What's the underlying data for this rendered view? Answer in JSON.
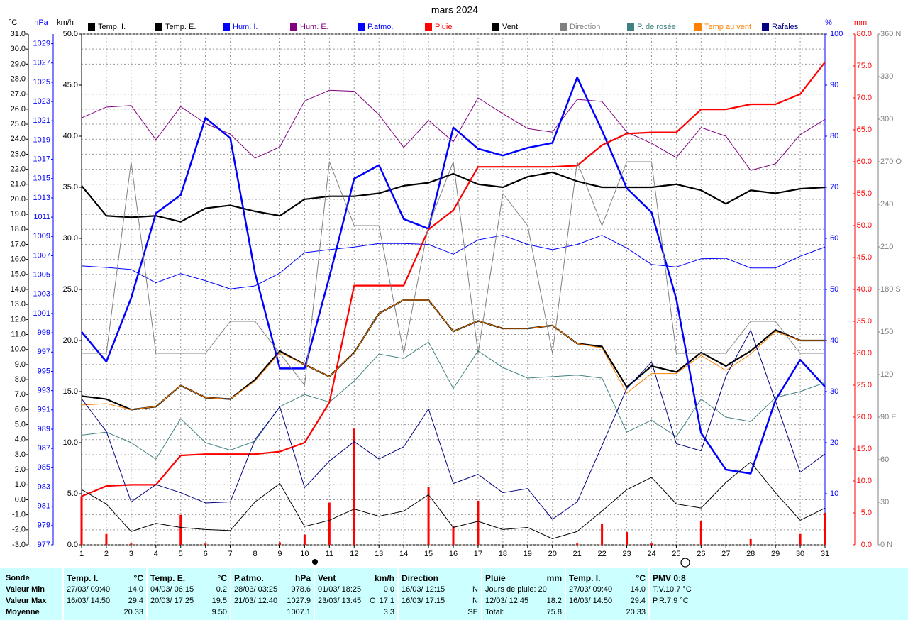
{
  "chart_data": {
    "type": "line",
    "title": "mars 2024",
    "x": [
      1,
      2,
      3,
      4,
      5,
      6,
      7,
      8,
      9,
      10,
      11,
      12,
      13,
      14,
      15,
      16,
      17,
      18,
      19,
      20,
      21,
      22,
      23,
      24,
      25,
      26,
      27,
      28,
      29,
      30,
      31
    ],
    "xlim": [
      1,
      31
    ],
    "xticks": [
      1,
      2,
      3,
      4,
      5,
      6,
      7,
      8,
      9,
      10,
      11,
      12,
      13,
      14,
      15,
      16,
      17,
      18,
      19,
      20,
      21,
      22,
      23,
      24,
      25,
      26,
      27,
      28,
      29,
      30,
      31
    ],
    "ylabel": "°C",
    "ycolor": "#000000",
    "ylim": [
      -3,
      31
    ],
    "yticks": [
      {
        "value": -3,
        "label": "-3.0"
      },
      {
        "value": -2,
        "label": "-2.0"
      },
      {
        "value": -1,
        "label": "-1.0"
      },
      {
        "value": 0,
        "label": "0.0"
      },
      {
        "value": 1,
        "label": "1.0"
      },
      {
        "value": 2,
        "label": "2.0"
      },
      {
        "value": 3,
        "label": "3.0"
      },
      {
        "value": 4,
        "label": "4.0"
      },
      {
        "value": 5,
        "label": "5.0"
      },
      {
        "value": 6,
        "label": "6.0"
      },
      {
        "value": 7,
        "label": "7.0"
      },
      {
        "value": 8,
        "label": "8.0"
      },
      {
        "value": 9,
        "label": "9.0"
      },
      {
        "value": 10,
        "label": "10.0"
      },
      {
        "value": 11,
        "label": "11.0"
      },
      {
        "value": 12,
        "label": "12.0"
      },
      {
        "value": 13,
        "label": "13.0"
      },
      {
        "value": 14,
        "label": "14.0"
      },
      {
        "value": 15,
        "label": "15.0"
      },
      {
        "value": 16,
        "label": "16.0"
      },
      {
        "value": 17,
        "label": "17.0"
      },
      {
        "value": 18,
        "label": "18.0"
      },
      {
        "value": 19,
        "label": "19.0"
      },
      {
        "value": 20,
        "label": "20.0"
      },
      {
        "value": 21,
        "label": "21.0"
      },
      {
        "value": 22,
        "label": "22.0"
      },
      {
        "value": 23,
        "label": "23.0"
      },
      {
        "value": 24,
        "label": "24.0"
      },
      {
        "value": 25,
        "label": "25.0"
      },
      {
        "value": 26,
        "label": "26.0"
      },
      {
        "value": 27,
        "label": "27.0"
      },
      {
        "value": 28,
        "label": "28.0"
      },
      {
        "value": 29,
        "label": "29.0"
      },
      {
        "value": 30,
        "label": "30.0"
      },
      {
        "value": 31,
        "label": "31.0"
      }
    ],
    "y2label": "hPa",
    "y2color": "#0000ff",
    "y2lim": [
      977,
      1030
    ],
    "y2ticks": [
      977,
      979,
      981,
      983,
      985,
      987,
      989,
      991,
      993,
      995,
      997,
      999,
      1001,
      1003,
      1005,
      1007,
      1009,
      1011,
      1013,
      1015,
      1017,
      1019,
      1021,
      1023,
      1025,
      1027,
      1029
    ],
    "y3label": "km/h",
    "y3color": "#000000",
    "y3lim": [
      0,
      50
    ],
    "y3ticks": [
      {
        "value": 0,
        "label": "0.0"
      },
      {
        "value": 5,
        "label": "5.0"
      },
      {
        "value": 10,
        "label": "10.0"
      },
      {
        "value": 15,
        "label": "15.0"
      },
      {
        "value": 20,
        "label": "20.0"
      },
      {
        "value": 25,
        "label": "25.0"
      },
      {
        "value": 30,
        "label": "30.0"
      },
      {
        "value": 35,
        "label": "35.0"
      },
      {
        "value": 40,
        "label": "40.0"
      },
      {
        "value": 45,
        "label": "45.0"
      },
      {
        "value": 50,
        "label": "50.0"
      }
    ],
    "y4label": "%",
    "y4color": "#0000ff",
    "y4lim": [
      0,
      100
    ],
    "y4ticks": [
      10,
      20,
      30,
      40,
      50,
      60,
      70,
      80,
      90,
      100
    ],
    "y5label": "mm",
    "y5color": "#ff0000",
    "y5lim": [
      0,
      80
    ],
    "y5ticks": [
      {
        "value": 0,
        "label": "0.0"
      },
      {
        "value": 5,
        "label": "5.0"
      },
      {
        "value": 10,
        "label": "10.0"
      },
      {
        "value": 15,
        "label": "15.0"
      },
      {
        "value": 20,
        "label": "20.0"
      },
      {
        "value": 25,
        "label": "25.0"
      },
      {
        "value": 30,
        "label": "30.0"
      },
      {
        "value": 35,
        "label": "35.0"
      },
      {
        "value": 40,
        "label": "40.0"
      },
      {
        "value": 45,
        "label": "45.0"
      },
      {
        "value": 50,
        "label": "50.0"
      },
      {
        "value": 55,
        "label": "55.0"
      },
      {
        "value": 60,
        "label": "60.0"
      },
      {
        "value": 65,
        "label": "65.0"
      },
      {
        "value": 70,
        "label": "70.0"
      },
      {
        "value": 75,
        "label": "75.0"
      },
      {
        "value": 80,
        "label": "80.0"
      }
    ],
    "y6color": "#808080",
    "y6lim": [
      0,
      360
    ],
    "y6ticks": [
      {
        "value": 0,
        "label": "0 N"
      },
      30,
      60,
      {
        "value": 90,
        "label": "90 E"
      },
      120,
      150,
      {
        "value": 180,
        "label": "180 S"
      },
      210,
      240,
      {
        "value": 270,
        "label": "270 O"
      },
      300,
      330,
      {
        "value": 360,
        "label": "360 N"
      }
    ],
    "grid": true,
    "series": [
      {
        "name": "Temp. I.",
        "color": "#000000",
        "axis": "y",
        "values": [
          20.9,
          18.9,
          18.8,
          18.9,
          18.5,
          19.4,
          19.6,
          19.2,
          18.9,
          20.0,
          20.2,
          20.2,
          20.4,
          20.9,
          21.1,
          21.7,
          21.0,
          20.8,
          21.5,
          21.8,
          21.2,
          20.8,
          20.8,
          20.8,
          21.0,
          20.6,
          19.7,
          20.6,
          20.4,
          20.7,
          20.8
        ]
      },
      {
        "name": "Temp. E.",
        "color": "#000000",
        "axis": "y",
        "values": [
          6.9,
          6.7,
          6.0,
          6.2,
          7.6,
          6.8,
          6.7,
          8.0,
          9.9,
          9.0,
          8.2,
          9.8,
          12.4,
          13.3,
          13.3,
          11.2,
          11.9,
          11.4,
          11.4,
          11.6,
          10.4,
          10.2,
          7.5,
          8.9,
          8.5,
          9.8,
          8.9,
          9.9,
          11.3,
          10.6,
          10.6
        ]
      },
      {
        "name": "Hum. I.",
        "color": "#0000ff",
        "axis": "y4",
        "values": [
          54.6,
          54.3,
          53.9,
          51.3,
          53.1,
          51.7,
          50.1,
          50.7,
          53.2,
          57.2,
          57.8,
          58.3,
          59.0,
          59.0,
          58.8,
          56.9,
          59.7,
          60.6,
          58.8,
          57.8,
          58.8,
          60.6,
          58.1,
          54.9,
          54.4,
          56.0,
          56.1,
          54.2,
          54.2,
          56.5,
          58.3
        ]
      },
      {
        "name": "Hum. E.",
        "color": "#800080",
        "axis": "y4",
        "values": [
          83.6,
          85.7,
          86.0,
          79.3,
          85.8,
          82.5,
          80.4,
          75.7,
          77.9,
          86.9,
          89.0,
          88.8,
          84.2,
          77.8,
          83.1,
          78.9,
          87.5,
          84.4,
          81.5,
          80.8,
          87.2,
          86.8,
          80.8,
          78.6,
          75.8,
          81.7,
          80.0,
          73.3,
          74.6,
          80.3,
          83.3
        ]
      },
      {
        "name": "P.atmo.",
        "color": "#0000ff",
        "axis": "y2",
        "values": [
          999.1,
          996.0,
          1002.6,
          1011.4,
          1013.3,
          1021.3,
          1019.2,
          1005.2,
          995.3,
          995.3,
          1004.8,
          1015.0,
          1016.4,
          1010.8,
          1009.8,
          1020.3,
          1018.1,
          1017.4,
          1018.2,
          1018.7,
          1025.5,
          1020.0,
          1014.0,
          1011.5,
          1002.5,
          988.6,
          984.8,
          984.4,
          992.0,
          996.2,
          993.4
        ]
      },
      {
        "name": "Pluie",
        "color": "#ff0000",
        "axis": "y5",
        "values": [
          7.6,
          9.2,
          9.4,
          9.4,
          14.0,
          14.2,
          14.2,
          14.2,
          14.6,
          16.0,
          22.3,
          40.6,
          40.6,
          40.6,
          49.4,
          52.4,
          59.2,
          59.2,
          59.2,
          59.2,
          59.4,
          62.6,
          64.4,
          64.6,
          64.6,
          68.2,
          68.2,
          69.0,
          69.0,
          70.6,
          75.6
        ],
        "bars": [
          7.6,
          1.7,
          0.2,
          0,
          4.7,
          0.2,
          0,
          0,
          0.4,
          1.6,
          6.6,
          18.2,
          0,
          0,
          9.0,
          3.0,
          6.9,
          0,
          0,
          0,
          0.2,
          3.3,
          2.0,
          0.2,
          0,
          3.7,
          0,
          0.9,
          0,
          1.7,
          5.0
        ]
      },
      {
        "name": "Vent",
        "color": "#000000",
        "axis": "y3",
        "values": [
          5.4,
          4.0,
          1.3,
          2.1,
          1.7,
          1.5,
          1.4,
          4.2,
          6.0,
          1.8,
          2.4,
          3.5,
          2.8,
          3.3,
          4.9,
          1.7,
          2.3,
          1.5,
          1.7,
          0.6,
          1.3,
          3.3,
          5.4,
          6.6,
          4.0,
          3.6,
          6.1,
          8.1,
          5.1,
          2.4,
          3.6
        ]
      },
      {
        "name": "Direction",
        "color": "#808080",
        "axis": "y6",
        "values": [
          135,
          135,
          270,
          135,
          135,
          135,
          157.5,
          157.5,
          135,
          112.5,
          270,
          225,
          225,
          135,
          225,
          270,
          135,
          247.5,
          225,
          135,
          270,
          225,
          270,
          270,
          135,
          135,
          135,
          157.5,
          157.5,
          135,
          135
        ]
      },
      {
        "name": "P. de rosée",
        "color": "#408080",
        "axis": "y",
        "values": [
          4.3,
          4.5,
          3.8,
          2.7,
          5.4,
          3.8,
          3.3,
          3.9,
          6.2,
          7.0,
          6.5,
          7.9,
          9.7,
          9.4,
          10.5,
          7.4,
          9.9,
          8.8,
          8.1,
          8.2,
          8.3,
          8.1,
          4.5,
          5.3,
          4.2,
          6.7,
          5.5,
          5.2,
          6.8,
          7.2,
          7.8
        ]
      },
      {
        "name": "Temp au vent",
        "color": "#ff8000",
        "axis": "y",
        "values": [
          6.3,
          6.4,
          6.0,
          6.2,
          7.6,
          6.8,
          6.7,
          7.9,
          9.8,
          9.0,
          8.2,
          9.8,
          12.4,
          13.3,
          13.3,
          11.2,
          11.9,
          11.4,
          11.4,
          11.6,
          10.4,
          10.1,
          7.1,
          8.4,
          8.4,
          9.6,
          8.6,
          9.7,
          11.2,
          10.6,
          10.6
        ]
      },
      {
        "name": "Rafales",
        "color": "#000080",
        "axis": "y3",
        "values": [
          14.3,
          11.1,
          4.2,
          5.9,
          5.1,
          4.1,
          4.2,
          10.3,
          13.5,
          5.6,
          8.2,
          10.1,
          8.4,
          9.6,
          13.3,
          6.0,
          6.9,
          5.1,
          5.5,
          2.5,
          4.2,
          9.7,
          15.3,
          17.9,
          9.9,
          9.2,
          16.5,
          21.0,
          14.1,
          7.1,
          8.9
        ]
      }
    ]
  },
  "stats": {
    "row_labels": [
      "Sonde",
      "Valeur Min",
      "Valeur Max",
      "Moyenne"
    ],
    "panels": [
      {
        "title": "Temp. I.",
        "unit": "°C",
        "rows": [
          [
            "27/03/ 09:40",
            "14.0"
          ],
          [
            "16/03/ 14:50",
            "29.4"
          ],
          [
            "20.33"
          ]
        ]
      },
      {
        "title": "Temp. E.",
        "unit": "°C",
        "rows": [
          [
            "04/03/ 06:15",
            "0.2"
          ],
          [
            "20/03/ 17:25",
            "19.5"
          ],
          [
            "9.50"
          ]
        ]
      },
      {
        "title": "P.atmo.",
        "unit": "hPa",
        "rows": [
          [
            "28/03/ 03:25",
            "978.6"
          ],
          [
            "21/03/ 12:40",
            "1027.9"
          ],
          [
            "1007.1"
          ]
        ]
      },
      {
        "title": "Vent",
        "unit": "km/h",
        "rows": [
          [
            "01/03/ 18:25",
            "0.0"
          ],
          [
            "23/03/ 13:45",
            "O",
            "17.1"
          ],
          [
            "3.3"
          ]
        ]
      },
      {
        "title": "Direction",
        "rows": [
          [
            "16/03/ 12:15",
            "N"
          ],
          [
            "16/03/ 17:15",
            "N"
          ],
          [
            "SE"
          ]
        ]
      },
      {
        "title": "Pluie",
        "unit": "mm",
        "rows": [
          [
            "Jours de pluie: 20"
          ],
          [
            "12/03/ 12:45",
            "18.2"
          ],
          [
            "Total:",
            "75.8"
          ]
        ]
      },
      {
        "title": "Temp. I.",
        "unit": "°C",
        "rows": [
          [
            "27/03/ 09:40",
            "14.0"
          ],
          [
            "16/03/ 14:50",
            "29.4"
          ],
          [
            "20.33"
          ]
        ]
      },
      {
        "title": "PMV 0:8",
        "rows": [
          [
            "T.V.10.7 °C"
          ],
          [
            "P.R.7.9 °C"
          ]
        ]
      }
    ]
  }
}
